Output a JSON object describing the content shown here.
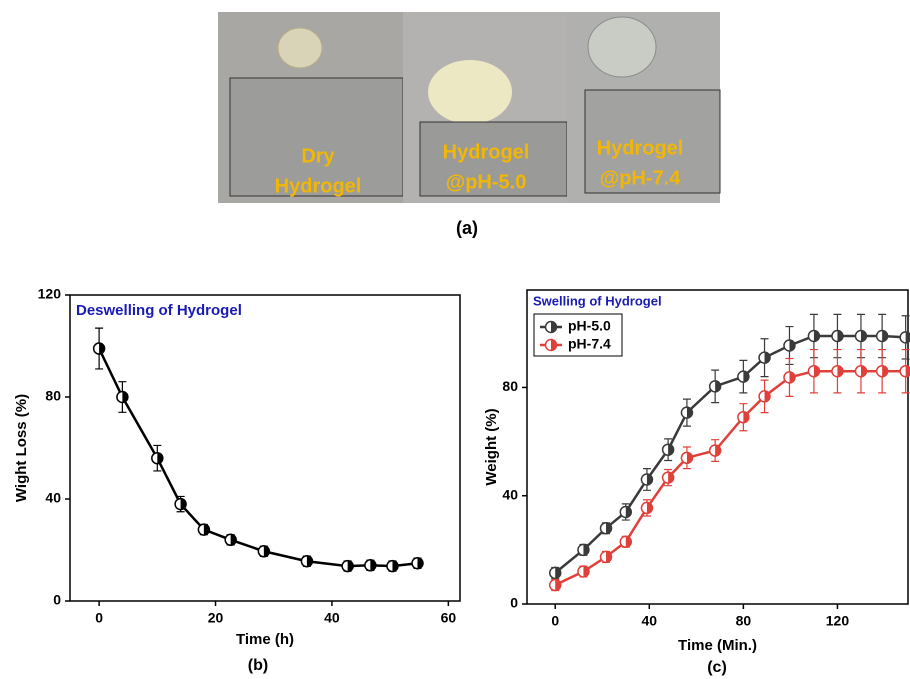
{
  "figure": {
    "photos": [
      {
        "lines": [
          "Dry",
          "Hydrogel"
        ]
      },
      {
        "lines": [
          "Hydrogel",
          "@pH-5.0"
        ]
      },
      {
        "lines": [
          "Hydrogel",
          "@pH-7.4"
        ]
      }
    ],
    "panel_label": "(a)"
  },
  "chart_data": [
    {
      "type": "line",
      "title": "Deswelling of Hydrogel",
      "panel_label": "(b)",
      "x_label": "Time (h)",
      "y_label": "Wight Loss (%)",
      "x": [
        0,
        4,
        10,
        14,
        18,
        22.6,
        28.3,
        35.7,
        42.7,
        46.6,
        50.4,
        54.7
      ],
      "values": [
        99,
        80,
        56,
        38,
        28,
        24,
        19.5,
        15.6,
        13.7,
        14,
        13.7,
        14.8
      ],
      "errors": [
        8,
        6,
        5,
        3,
        2,
        2,
        2,
        2,
        2,
        2,
        2,
        2
      ],
      "color": "#000000",
      "xlim": [
        -5,
        62
      ],
      "ylim": [
        0,
        120
      ],
      "xticks": [
        0,
        20,
        40,
        60
      ],
      "yticks": [
        0,
        40,
        80,
        120
      ],
      "grid": false
    },
    {
      "type": "line",
      "title": "Swelling of Hydrogel",
      "panel_label": "(c)",
      "x_label": "Time (Min.)",
      "y_label": "Weight (%)",
      "x": [
        0,
        12,
        21.6,
        30,
        39,
        48,
        56,
        68,
        80,
        89,
        99.6,
        110,
        120,
        130,
        139,
        149
      ],
      "series": [
        {
          "name": "pH-5.0",
          "color": "#3a3a3a",
          "values": [
            11.5,
            20,
            28,
            34,
            46,
            57,
            70.7,
            80.4,
            84,
            91,
            95.5,
            99,
            99,
            99,
            99,
            98.5
          ],
          "errors": [
            2,
            2,
            2,
            3,
            4,
            4,
            5,
            6,
            6,
            7,
            7,
            8,
            8,
            8,
            8,
            8
          ]
        },
        {
          "name": "pH-7.4",
          "color": "#e0403a",
          "values": [
            7,
            12,
            17.4,
            23,
            35.5,
            46.7,
            54,
            56.7,
            69,
            76.7,
            83.7,
            86,
            86,
            86,
            86,
            86
          ],
          "errors": [
            2,
            2,
            2,
            2,
            3,
            3,
            4,
            4,
            5,
            6,
            7,
            8,
            8,
            8,
            8,
            8
          ]
        }
      ],
      "xlim": [
        -12,
        150
      ],
      "ylim": [
        0,
        116
      ],
      "xticks": [
        0,
        40,
        80,
        120
      ],
      "yticks": [
        0,
        40,
        80
      ],
      "grid": false,
      "legend": "upper-left"
    }
  ]
}
